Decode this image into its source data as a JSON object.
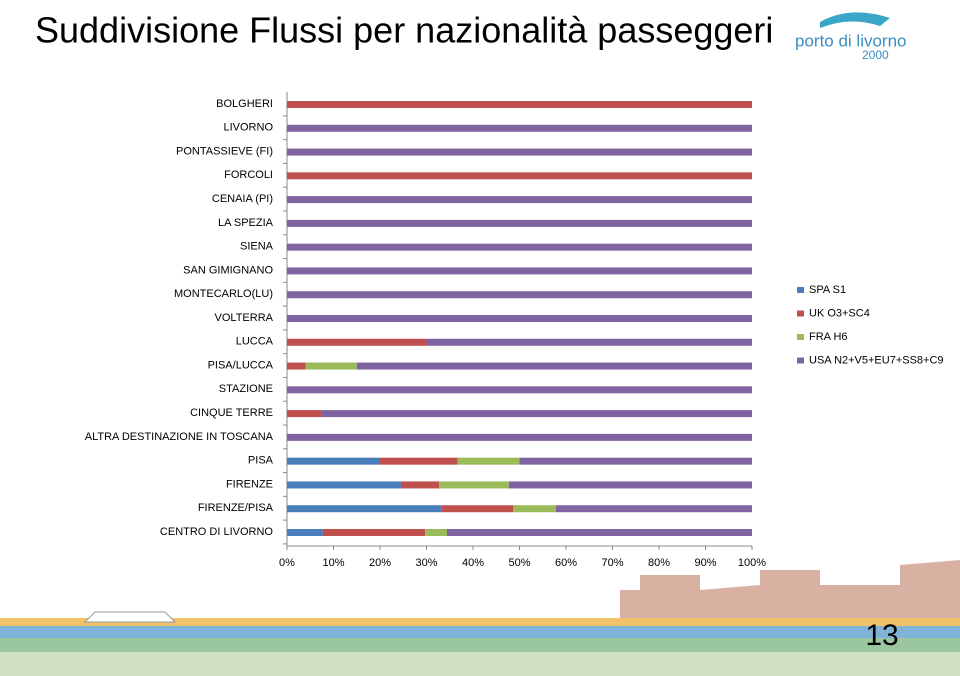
{
  "chart_data": {
    "type": "stacked-bar-horizontal",
    "title": "Suddivisione Flussi per nazionalità passeggeri",
    "categories": [
      "BOLGHERI",
      "LIVORNO",
      "PONTASSIEVE (FI)",
      "FORCOLI",
      "CENAIA (PI)",
      "LA SPEZIA",
      "SIENA",
      "SAN GIMIGNANO",
      "MONTECARLO(LU)",
      "VOLTERRA",
      "LUCCA",
      "PISA/LUCCA",
      "STAZIONE",
      "CINQUE TERRE",
      "ALTRA DESTINAZIONE IN TOSCANA",
      "PISA",
      "FIRENZE",
      "FIRENZE/PISA",
      "CENTRO DI LIVORNO"
    ],
    "series": [
      {
        "name": "SPA S1",
        "color": "#4a7ebb",
        "values": [
          0,
          0,
          0,
          0,
          0,
          0,
          0,
          0,
          0,
          0,
          0,
          0,
          0,
          0,
          0,
          20,
          24.5,
          33.3,
          7.7
        ]
      },
      {
        "name": "UK O3+SC4",
        "color": "#c0504d",
        "values": [
          100,
          0,
          0,
          100,
          0,
          0,
          0,
          0,
          0,
          0,
          30,
          4,
          0,
          7.5,
          0,
          16.7,
          8.2,
          15.3,
          22
        ]
      },
      {
        "name": "FRA H6",
        "color": "#9bbb59",
        "values": [
          0,
          0,
          0,
          0,
          0,
          0,
          0,
          0,
          0,
          0,
          0,
          11,
          0,
          0,
          0,
          13.3,
          15,
          9.2,
          4.7
        ]
      },
      {
        "name": "USA N2+V5+EU7+SS8+C9",
        "color": "#8064a2",
        "values": [
          0,
          100,
          100,
          0,
          100,
          100,
          100,
          100,
          100,
          100,
          70,
          85,
          100,
          92.5,
          100,
          50,
          52.3,
          42.2,
          65.6
        ]
      }
    ],
    "xlim": [
      0,
      100
    ],
    "xticks": [
      {
        "value": 0,
        "label": "0%"
      },
      {
        "value": 10,
        "label": "10%"
      },
      {
        "value": 20,
        "label": "20%"
      },
      {
        "value": 30,
        "label": "30%"
      },
      {
        "value": 40,
        "label": "40%"
      },
      {
        "value": 50,
        "label": "50%"
      },
      {
        "value": 60,
        "label": "60%"
      },
      {
        "value": 70,
        "label": "70%"
      },
      {
        "value": 80,
        "label": "80%"
      },
      {
        "value": 90,
        "label": "90%"
      },
      {
        "value": 100,
        "label": "100%"
      }
    ],
    "grid": false,
    "legend": "right"
  },
  "slide": {
    "logo_name": "porto di livorno",
    "logo_year": "2000",
    "page_number": "13"
  }
}
